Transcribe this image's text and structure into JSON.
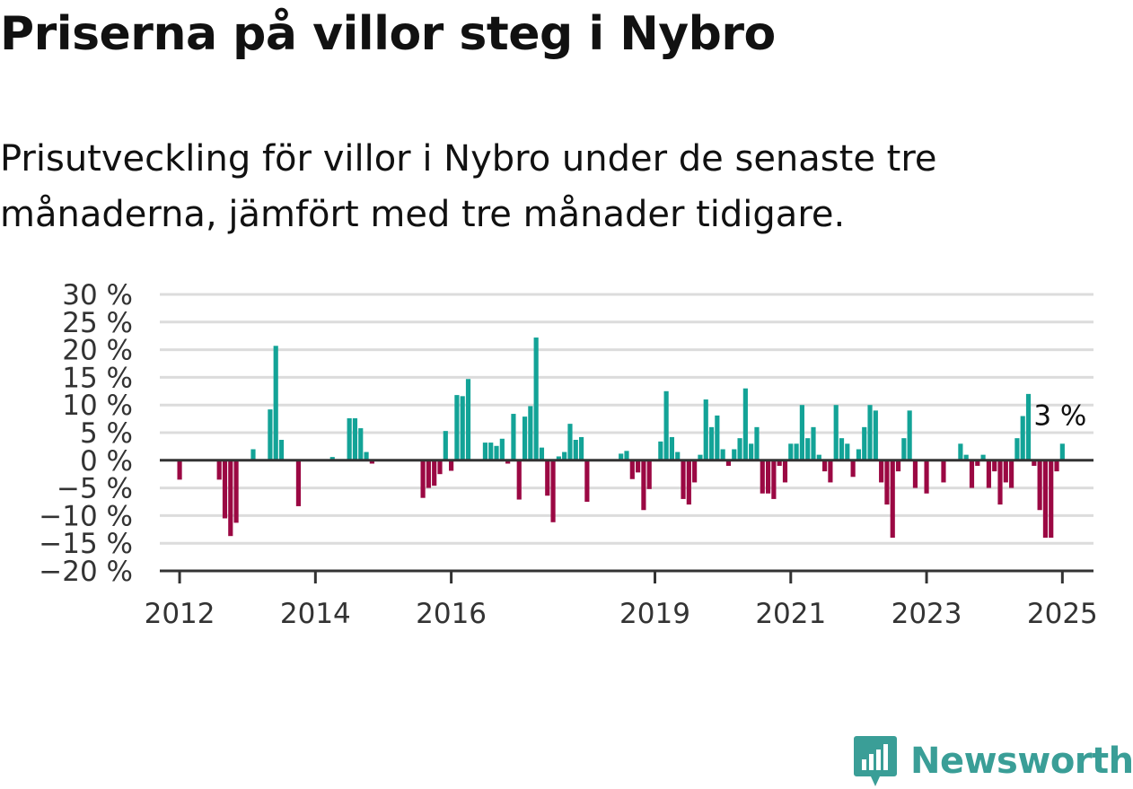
{
  "header": {
    "title": "Priserna på villor steg i Nybro",
    "subtitle": "Prisutveckling för villor i Nybro under de senaste tre månaderna, jämfört med tre månader tidigare."
  },
  "branding": {
    "logo_text": "Newsworthy",
    "logo_icon": "bar-chart-badge-icon",
    "color": "#3a9e97"
  },
  "colors": {
    "positive": "#13a397",
    "negative": "#9b0843",
    "grid": "#dcdcdc",
    "axis": "#333333"
  },
  "chart_data": {
    "type": "bar",
    "x_unit": "months since 2012-01",
    "xlim": [
      -3.5,
      161.5
    ],
    "ylim": [
      -20,
      30
    ],
    "y_ticks": [
      30,
      25,
      20,
      15,
      10,
      5,
      0,
      -5,
      -10,
      -15,
      -20
    ],
    "y_tick_labels": [
      "30 %",
      "25 %",
      "20 %",
      "15 %",
      "10 %",
      "5 %",
      "0 %",
      "−5 %",
      "−10 %",
      "−15 %",
      "−20 %"
    ],
    "x_ticks": [
      0,
      24,
      48,
      84,
      108,
      132,
      156
    ],
    "x_tick_labels": [
      "2012",
      "2014",
      "2016",
      "2019",
      "2021",
      "2023",
      "2025"
    ],
    "grid": true,
    "annotation": {
      "text": "3 %",
      "x": 156,
      "y": 8
    },
    "bars": [
      {
        "x": 0,
        "v": -3.5
      },
      {
        "x": 7,
        "v": -3.5
      },
      {
        "x": 8,
        "v": -10.5
      },
      {
        "x": 9,
        "v": -13.7
      },
      {
        "x": 10,
        "v": -11.3
      },
      {
        "x": 13,
        "v": 2.0
      },
      {
        "x": 16,
        "v": 9.2
      },
      {
        "x": 17,
        "v": 20.7
      },
      {
        "x": 18,
        "v": 3.7
      },
      {
        "x": 21,
        "v": -8.3
      },
      {
        "x": 27,
        "v": 0.6
      },
      {
        "x": 30,
        "v": 7.6
      },
      {
        "x": 31,
        "v": 7.6
      },
      {
        "x": 32,
        "v": 5.8
      },
      {
        "x": 33,
        "v": 1.5
      },
      {
        "x": 34,
        "v": -0.6
      },
      {
        "x": 43,
        "v": -6.8
      },
      {
        "x": 44,
        "v": -5.0
      },
      {
        "x": 45,
        "v": -4.6
      },
      {
        "x": 46,
        "v": -2.5
      },
      {
        "x": 47,
        "v": 5.3
      },
      {
        "x": 48,
        "v": -1.9
      },
      {
        "x": 49,
        "v": 11.8
      },
      {
        "x": 50,
        "v": 11.6
      },
      {
        "x": 51,
        "v": 14.7
      },
      {
        "x": 54,
        "v": 3.2
      },
      {
        "x": 55,
        "v": 3.2
      },
      {
        "x": 56,
        "v": 2.6
      },
      {
        "x": 57,
        "v": 3.9
      },
      {
        "x": 58,
        "v": -0.6
      },
      {
        "x": 59,
        "v": 8.4
      },
      {
        "x": 60,
        "v": -7.1
      },
      {
        "x": 61,
        "v": 7.9
      },
      {
        "x": 62,
        "v": 9.8
      },
      {
        "x": 63,
        "v": 22.2
      },
      {
        "x": 64,
        "v": 2.3
      },
      {
        "x": 65,
        "v": -6.4
      },
      {
        "x": 66,
        "v": -11.2
      },
      {
        "x": 67,
        "v": 0.7
      },
      {
        "x": 68,
        "v": 1.5
      },
      {
        "x": 69,
        "v": 6.6
      },
      {
        "x": 70,
        "v": 3.7
      },
      {
        "x": 71,
        "v": 4.2
      },
      {
        "x": 72,
        "v": -7.5
      },
      {
        "x": 78,
        "v": 1.2
      },
      {
        "x": 79,
        "v": 1.7
      },
      {
        "x": 80,
        "v": -3.4
      },
      {
        "x": 81,
        "v": -2.2
      },
      {
        "x": 82,
        "v": -9.0
      },
      {
        "x": 83,
        "v": -5.2
      },
      {
        "x": 85,
        "v": 3.4
      },
      {
        "x": 86,
        "v": 12.5
      },
      {
        "x": 87,
        "v": 4.2
      },
      {
        "x": 88,
        "v": 1.5
      },
      {
        "x": 89,
        "v": -7.0
      },
      {
        "x": 90,
        "v": -8.0
      },
      {
        "x": 91,
        "v": -4.0
      },
      {
        "x": 92,
        "v": 1.0
      },
      {
        "x": 93,
        "v": 11.0
      },
      {
        "x": 94,
        "v": 6.0
      },
      {
        "x": 95,
        "v": 8.1
      },
      {
        "x": 96,
        "v": 2.0
      },
      {
        "x": 97,
        "v": -1.0
      },
      {
        "x": 98,
        "v": 2.0
      },
      {
        "x": 99,
        "v": 4.0
      },
      {
        "x": 100,
        "v": 13.0
      },
      {
        "x": 101,
        "v": 3.0
      },
      {
        "x": 102,
        "v": 6.0
      },
      {
        "x": 103,
        "v": -6.0
      },
      {
        "x": 104,
        "v": -6.0
      },
      {
        "x": 105,
        "v": -7.0
      },
      {
        "x": 106,
        "v": -1.0
      },
      {
        "x": 107,
        "v": -4.0
      },
      {
        "x": 108,
        "v": 3.0
      },
      {
        "x": 109,
        "v": 3.0
      },
      {
        "x": 110,
        "v": 10.0
      },
      {
        "x": 111,
        "v": 4.0
      },
      {
        "x": 112,
        "v": 6.0
      },
      {
        "x": 113,
        "v": 1.0
      },
      {
        "x": 114,
        "v": -2.0
      },
      {
        "x": 115,
        "v": -4.0
      },
      {
        "x": 116,
        "v": 10.0
      },
      {
        "x": 117,
        "v": 4.0
      },
      {
        "x": 118,
        "v": 3.0
      },
      {
        "x": 119,
        "v": -3.0
      },
      {
        "x": 120,
        "v": 2.0
      },
      {
        "x": 121,
        "v": 6.0
      },
      {
        "x": 122,
        "v": 10.0
      },
      {
        "x": 123,
        "v": 9.0
      },
      {
        "x": 124,
        "v": -4.0
      },
      {
        "x": 125,
        "v": -8.0
      },
      {
        "x": 126,
        "v": -14.0
      },
      {
        "x": 127,
        "v": -2.0
      },
      {
        "x": 128,
        "v": 4.0
      },
      {
        "x": 129,
        "v": 9.0
      },
      {
        "x": 130,
        "v": -5.0
      },
      {
        "x": 132,
        "v": -6.0
      },
      {
        "x": 135,
        "v": -4.0
      },
      {
        "x": 138,
        "v": 3.0
      },
      {
        "x": 139,
        "v": 1.0
      },
      {
        "x": 140,
        "v": -5.0
      },
      {
        "x": 141,
        "v": -1.0
      },
      {
        "x": 142,
        "v": 1.0
      },
      {
        "x": 143,
        "v": -5.0
      },
      {
        "x": 144,
        "v": -2.0
      },
      {
        "x": 145,
        "v": -8.0
      },
      {
        "x": 146,
        "v": -4.0
      },
      {
        "x": 147,
        "v": -5.0
      },
      {
        "x": 148,
        "v": 4.0
      },
      {
        "x": 149,
        "v": 8.0
      },
      {
        "x": 150,
        "v": 12.0
      },
      {
        "x": 151,
        "v": -1.0
      },
      {
        "x": 152,
        "v": -9.0
      },
      {
        "x": 153,
        "v": -14.0
      },
      {
        "x": 154,
        "v": -14.0
      },
      {
        "x": 155,
        "v": -2.0
      },
      {
        "x": 156,
        "v": 3.0
      }
    ]
  }
}
